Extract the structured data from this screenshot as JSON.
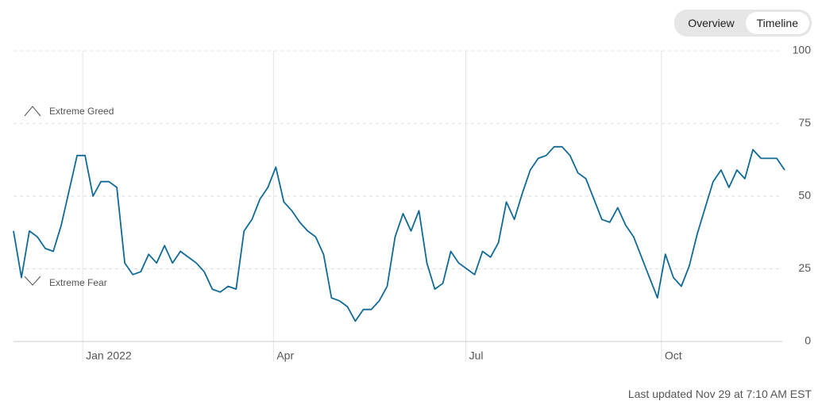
{
  "buttons": [
    "Overview",
    "Timeline"
  ],
  "footer": "Last updated Nov 29 at 7:10 AM EST",
  "chart_data": {
    "type": "line",
    "annotations": [
      {
        "text": "Extreme Greed",
        "y": 79
      },
      {
        "text": "Extreme Fear",
        "y": 20
      }
    ],
    "series": [
      {
        "color": "#0f6a96",
        "values": [
          38,
          22,
          38,
          36,
          32,
          31,
          40,
          52,
          64,
          64,
          50,
          55,
          55,
          53,
          27,
          23,
          24,
          30,
          27,
          33,
          27,
          31,
          29,
          27,
          24,
          18,
          17,
          19,
          18,
          38,
          42,
          49,
          53,
          60,
          48,
          45,
          41,
          38,
          36,
          30,
          15,
          14,
          12,
          7,
          11,
          11,
          14,
          19,
          36,
          44,
          38,
          45,
          27,
          18,
          20,
          31,
          27,
          25,
          23,
          31,
          29,
          34,
          48,
          42,
          51,
          59,
          63,
          64,
          67,
          67,
          64,
          58,
          56,
          49,
          42,
          41,
          46,
          40,
          36,
          29,
          22,
          15,
          30,
          22,
          19,
          26,
          37,
          46,
          55,
          59,
          53,
          59,
          56,
          66,
          63,
          63,
          63,
          59
        ]
      }
    ],
    "xlim": [
      0,
      97
    ],
    "xticks": [
      {
        "value": 8.7,
        "label": "Jan 2022"
      },
      {
        "value": 32.7,
        "label": "Apr"
      },
      {
        "value": 56.9,
        "label": "Jul"
      },
      {
        "value": 81.5,
        "label": "Oct"
      }
    ],
    "ylim": [
      0,
      100
    ],
    "yticks": [
      0,
      25,
      50,
      75,
      100
    ],
    "grid": true
  }
}
